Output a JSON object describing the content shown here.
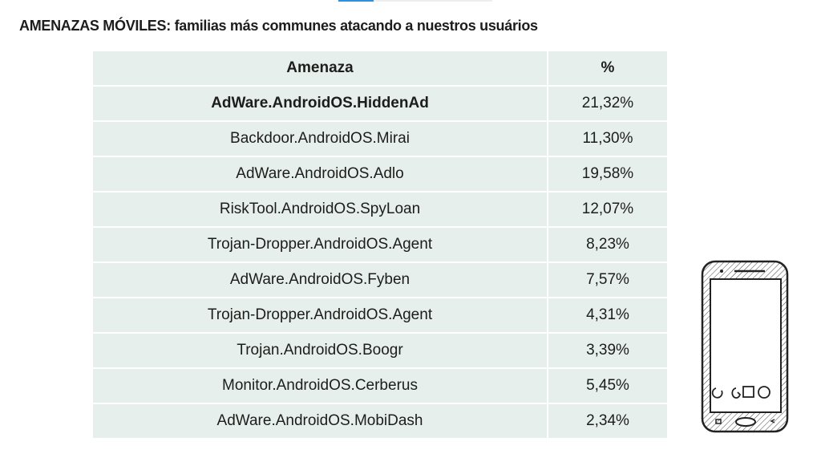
{
  "progress": {
    "fraction": 0.23
  },
  "title": "AMENAZAS MÓVILES: familias más communes atacando a nuestros usuários",
  "table": {
    "headers": [
      "Amenaza",
      "%"
    ],
    "rows": [
      {
        "threat": "AdWare.AndroidOS.HiddenAd",
        "pct": "21,32%"
      },
      {
        "threat": "Backdoor.AndroidOS.Mirai",
        "pct": "11,30%"
      },
      {
        "threat": "AdWare.AndroidOS.Adlo",
        "pct": "19,58%"
      },
      {
        "threat": "RiskTool.AndroidOS.SpyLoan",
        "pct": "12,07%"
      },
      {
        "threat": "Trojan-Dropper.AndroidOS.Agent",
        "pct": "8,23%"
      },
      {
        "threat": "AdWare.AndroidOS.Fyben",
        "pct": "7,57%"
      },
      {
        "threat": "Trojan-Dropper.AndroidOS.Agent",
        "pct": "4,31%"
      },
      {
        "threat": "Trojan.AndroidOS.Boogr",
        "pct": "3,39%"
      },
      {
        "threat": "Monitor.AndroidOS.Cerberus",
        "pct": "5,45%"
      },
      {
        "threat": "AdWare.AndroidOS.MobiDash",
        "pct": "2,34%"
      }
    ]
  }
}
